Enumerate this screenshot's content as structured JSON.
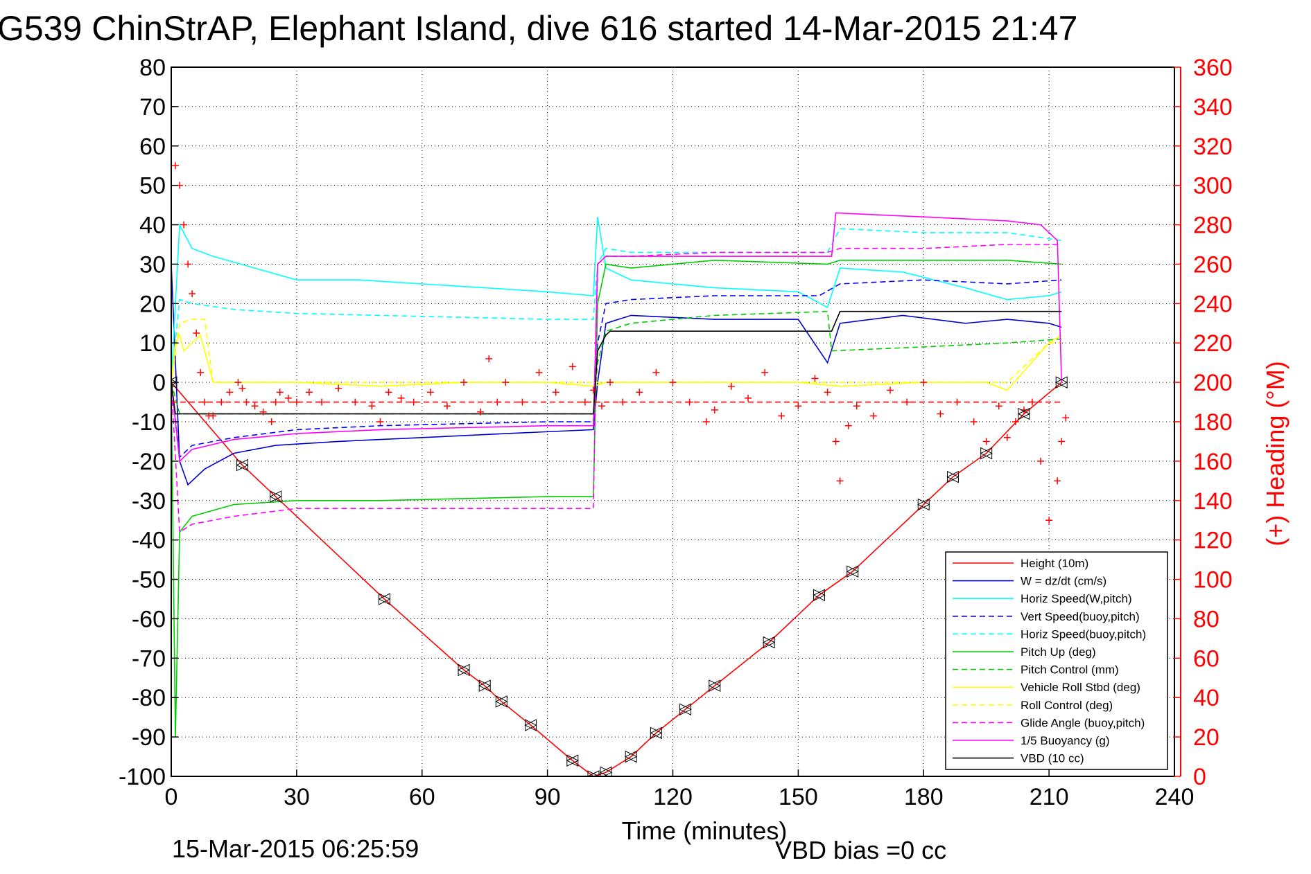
{
  "chart_data": {
    "type": "line",
    "title": "G539 ChinStrAP, Elephant Island, dive 616 started 14-Mar-2015 21:47",
    "xlabel": "Time (minutes)",
    "ylabel_right": "(+) Heading (°M)",
    "footer_left": "15-Mar-2015 06:25:59",
    "footer_center": "VBD bias =0 cc",
    "xlim": [
      0,
      240
    ],
    "ylim": [
      -100,
      80
    ],
    "ylim_right": [
      0,
      360
    ],
    "xticks": [
      "0",
      "30",
      "60",
      "90",
      "120",
      "150",
      "180",
      "210",
      "240"
    ],
    "yticks": [
      "80",
      "70",
      "60",
      "50",
      "40",
      "30",
      "20",
      "10",
      "0",
      "-10",
      "-20",
      "-30",
      "-40",
      "-50",
      "-60",
      "-70",
      "-80",
      "-90",
      "-100"
    ],
    "yticks_right": [
      "360",
      "340",
      "320",
      "300",
      "280",
      "260",
      "240",
      "220",
      "200",
      "180",
      "160",
      "140",
      "120",
      "100",
      "80",
      "60",
      "40",
      "20",
      "0"
    ],
    "grid": true,
    "legend_position": "bottom-right",
    "series": [
      {
        "name": "Height (10m)",
        "color": "#ff0000",
        "style": "solid",
        "x": [
          0,
          17,
          25,
          51,
          70,
          75,
          79,
          86,
          96,
          101,
          104,
          110,
          116,
          123,
          130,
          143,
          155,
          163,
          180,
          187,
          195,
          204,
          213
        ],
        "y": [
          0,
          -21,
          -29,
          -55,
          -73,
          -77,
          -81,
          -87,
          -96,
          -100,
          -99,
          -95,
          -89,
          -83,
          -77,
          -66,
          -54,
          -48,
          -31,
          -24,
          -18,
          -8,
          0
        ]
      },
      {
        "name": "W = dz/dt (cm/s)",
        "color": "#0000cc",
        "style": "solid",
        "x": [
          0,
          2,
          4,
          8,
          15,
          25,
          40,
          60,
          80,
          101,
          102,
          104,
          110,
          130,
          150,
          157,
          160,
          175,
          190,
          200,
          210,
          213
        ],
        "y": [
          30,
          -20,
          -26,
          -22,
          -18,
          -16,
          -15,
          -14,
          -13,
          -12,
          0,
          15,
          17,
          16,
          16,
          5,
          15,
          17,
          15,
          16,
          15,
          14
        ]
      },
      {
        "name": "Horiz Speed(W,pitch)",
        "color": "#00ffff",
        "style": "solid",
        "x": [
          0,
          2,
          5,
          10,
          20,
          30,
          45,
          60,
          75,
          90,
          101,
          102,
          104,
          110,
          130,
          150,
          157,
          160,
          175,
          190,
          200,
          210,
          213
        ],
        "y": [
          0,
          40,
          34,
          32,
          29,
          26,
          26,
          25,
          24,
          23,
          22,
          42,
          29,
          26,
          24,
          23,
          19,
          29,
          28,
          24,
          21,
          22,
          23
        ]
      },
      {
        "name": "Vert Speed(buoy,pitch)",
        "color": "#0000ff",
        "style": "dashed",
        "x": [
          0,
          2,
          5,
          15,
          30,
          50,
          70,
          90,
          101,
          102,
          104,
          110,
          130,
          155,
          160,
          180,
          200,
          213
        ],
        "y": [
          0,
          -19,
          -16,
          -14,
          -12,
          -11,
          -10.5,
          -10,
          -10,
          10,
          20,
          21,
          22,
          22,
          25,
          26,
          25,
          26
        ]
      },
      {
        "name": "Horiz Speed(buoy,pitch)",
        "color": "#00ffff",
        "style": "dashed",
        "x": [
          0,
          2,
          5,
          15,
          30,
          50,
          70,
          90,
          101,
          102,
          104,
          110,
          130,
          157,
          160,
          180,
          200,
          213
        ],
        "y": [
          0,
          21,
          20,
          18.5,
          17.5,
          17,
          16.5,
          16,
          16,
          30,
          34,
          33,
          33,
          33,
          39,
          38,
          38,
          36
        ]
      },
      {
        "name": "Pitch Up (deg)",
        "color": "#00cc00",
        "style": "solid",
        "x": [
          0,
          1,
          2,
          5,
          15,
          30,
          50,
          70,
          90,
          101,
          102,
          104,
          110,
          130,
          157,
          160,
          180,
          200,
          213
        ],
        "y": [
          0,
          -90,
          -38,
          -34,
          -31,
          -30,
          -30,
          -29.5,
          -29,
          -29,
          20,
          30,
          29,
          31,
          30,
          31,
          31,
          31,
          30
        ]
      },
      {
        "name": "Pitch Control (mm)",
        "color": "#00cc00",
        "style": "dashed",
        "x": [
          0,
          2,
          101,
          102,
          104,
          110,
          120,
          130,
          157,
          158,
          180,
          200,
          213
        ],
        "y": [
          0,
          -8,
          -8,
          5,
          13,
          15,
          16,
          17,
          18,
          8,
          9,
          10,
          11
        ]
      },
      {
        "name": "Vehicle Roll Stbd (deg)",
        "color": "#ffff00",
        "style": "solid",
        "x": [
          0,
          1,
          2,
          3,
          5,
          7,
          10,
          30,
          50,
          70,
          90,
          101,
          104,
          110,
          130,
          150,
          160,
          180,
          195,
          200,
          210,
          213
        ],
        "y": [
          0,
          10,
          12,
          8,
          10,
          12,
          0,
          0,
          -1,
          0,
          0,
          -1,
          0,
          0,
          0,
          0,
          -1,
          0,
          0,
          -2,
          10,
          12
        ]
      },
      {
        "name": "Roll Control (deg)",
        "color": "#ffff00",
        "style": "dashed",
        "x": [
          0,
          2,
          5,
          8,
          10,
          30,
          60,
          90,
          101,
          104,
          130,
          160,
          180,
          200,
          210,
          213
        ],
        "y": [
          0,
          15,
          16,
          16,
          0,
          0,
          0,
          0,
          0,
          0,
          0,
          0,
          0,
          0,
          10,
          10
        ]
      },
      {
        "name": "Glide Angle (buoy,pitch)",
        "color": "#ff00ff",
        "style": "dashed",
        "x": [
          0,
          2,
          5,
          15,
          30,
          50,
          70,
          90,
          101,
          102,
          104,
          110,
          130,
          157,
          160,
          180,
          200,
          213
        ],
        "y": [
          0,
          -38,
          -36,
          -34,
          -32,
          -32,
          -32,
          -32,
          -32,
          30,
          32,
          32,
          33,
          33,
          34,
          34,
          35,
          35
        ]
      },
      {
        "name": "1/5 Buoyancy (g)",
        "color": "#ff00ff",
        "style": "solid",
        "x": [
          0,
          2,
          5,
          15,
          30,
          50,
          70,
          90,
          101,
          102,
          104,
          120,
          140,
          158,
          159,
          180,
          200,
          208,
          212,
          213
        ],
        "y": [
          0,
          -20,
          -17,
          -14.5,
          -13,
          -12,
          -11.5,
          -11,
          -11,
          30,
          32,
          32,
          32,
          32,
          43,
          42,
          41,
          40,
          36,
          0
        ]
      },
      {
        "name": "VBD (10 cc)",
        "color": "#000000",
        "style": "solid",
        "x": [
          0,
          1,
          101,
          102,
          104,
          105,
          157,
          158,
          160,
          213
        ],
        "y": [
          0,
          -8,
          -8,
          8,
          12,
          13,
          13,
          13,
          18,
          18
        ]
      },
      {
        "name": "",
        "color": "#ff0000",
        "style": "dashed",
        "x": [
          0,
          213
        ],
        "y": [
          -5,
          -5
        ]
      }
    ],
    "heading": {
      "color": "#ff0000",
      "marker": "+",
      "x": [
        0,
        1,
        2,
        3,
        4,
        5,
        6,
        7,
        8,
        9,
        10,
        12,
        14,
        16,
        17,
        18,
        20,
        22,
        24,
        25,
        26,
        28,
        30,
        33,
        36,
        40,
        44,
        48,
        50,
        52,
        55,
        58,
        62,
        66,
        70,
        74,
        76,
        78,
        80,
        84,
        88,
        92,
        96,
        99,
        101,
        103,
        105,
        108,
        112,
        116,
        120,
        124,
        128,
        130,
        134,
        138,
        142,
        146,
        150,
        154,
        157,
        159,
        160,
        162,
        164,
        168,
        172,
        176,
        180,
        184,
        188,
        192,
        195,
        198,
        200,
        202,
        204,
        206,
        208,
        210,
        211,
        212,
        213,
        214
      ],
      "y": [
        340,
        310,
        300,
        280,
        260,
        245,
        225,
        205,
        190,
        183,
        183,
        190,
        195,
        200,
        197,
        190,
        188,
        185,
        180,
        190,
        195,
        192,
        190,
        195,
        190,
        197,
        190,
        188,
        180,
        195,
        192,
        190,
        195,
        188,
        200,
        185,
        212,
        190,
        200,
        190,
        205,
        195,
        208,
        190,
        196,
        188,
        200,
        190,
        195,
        205,
        200,
        190,
        180,
        186,
        198,
        192,
        205,
        183,
        188,
        202,
        195,
        170,
        150,
        178,
        188,
        183,
        196,
        190,
        200,
        184,
        190,
        180,
        170,
        188,
        172,
        180,
        186,
        190,
        160,
        130,
        110,
        150,
        170,
        182
      ]
    }
  }
}
